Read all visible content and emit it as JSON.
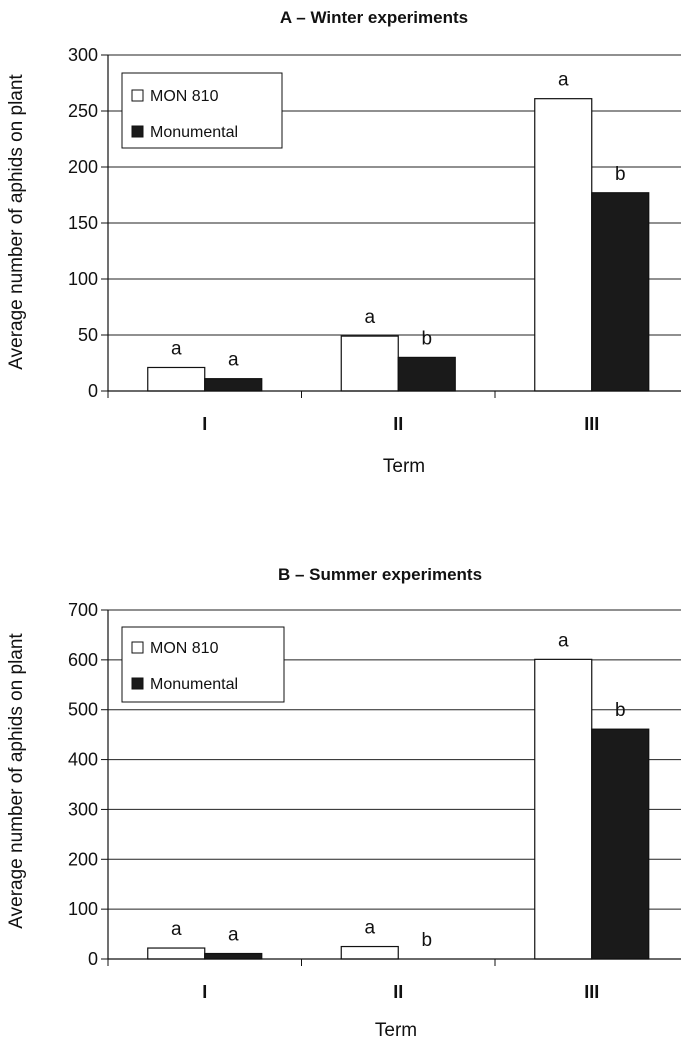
{
  "chart_data": [
    {
      "type": "bar",
      "title": "A – Winter experiments",
      "xlabel": "Term",
      "ylabel": "Average number of aphids on plant",
      "categories": [
        "I",
        "II",
        "III"
      ],
      "ylim": [
        0,
        300
      ],
      "yticks": [
        0,
        50,
        100,
        150,
        200,
        250,
        300
      ],
      "grid": true,
      "legend_position": "top-left",
      "series": [
        {
          "name": "MON 810",
          "values": [
            21,
            49,
            261
          ],
          "labels": [
            "a",
            "a",
            "a"
          ],
          "color": "#ffffff"
        },
        {
          "name": "Monumental",
          "values": [
            11,
            30,
            177
          ],
          "labels": [
            "a",
            "b",
            "b"
          ],
          "color": "#1a1a1a"
        }
      ]
    },
    {
      "type": "bar",
      "title": "B – Summer experiments",
      "xlabel": "Term",
      "ylabel": "Average number of aphids on plant",
      "categories": [
        "I",
        "II",
        "III"
      ],
      "ylim": [
        0,
        700
      ],
      "yticks": [
        0,
        100,
        200,
        300,
        400,
        500,
        600,
        700
      ],
      "grid": true,
      "legend_position": "top-left",
      "series": [
        {
          "name": "MON 810",
          "values": [
            22,
            25,
            601
          ],
          "labels": [
            "a",
            "a",
            "a"
          ],
          "color": "#ffffff"
        },
        {
          "name": "Monumental",
          "values": [
            11,
            0,
            461
          ],
          "labels": [
            "a",
            "b",
            "b"
          ],
          "color": "#1a1a1a"
        }
      ]
    }
  ]
}
